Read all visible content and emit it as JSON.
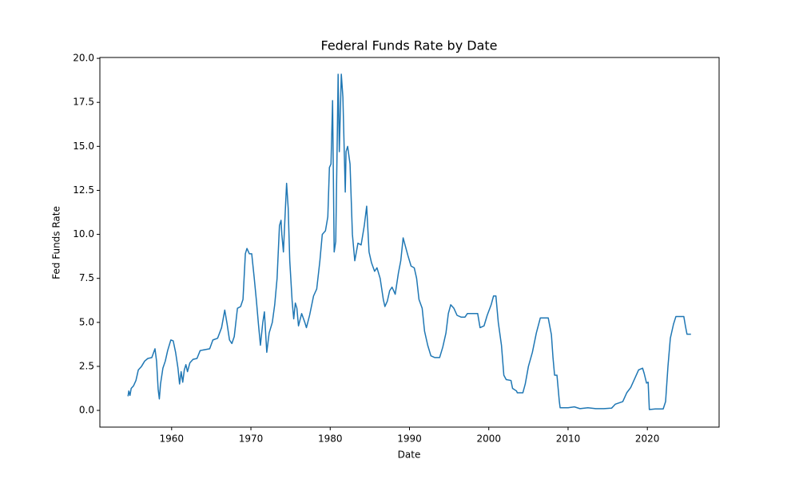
{
  "chart_data": {
    "type": "line",
    "title": "Federal Funds Rate by Date",
    "x_label": "Date",
    "y_label": "Fed Funds Rate",
    "xlim": [
      1950.95,
      2029.05
    ],
    "ylim": [
      -0.95,
      20.05
    ],
    "xticks": [
      1960,
      1970,
      1980,
      1990,
      2000,
      2010,
      2020
    ],
    "yticks": [
      {
        "value": 0,
        "label": "0.0"
      },
      2.5,
      {
        "value": 5,
        "label": "5.0"
      },
      7.5,
      {
        "value": 10,
        "label": "10.0"
      },
      12.5,
      {
        "value": 15,
        "label": "15.0"
      },
      17.5,
      {
        "value": 20,
        "label": "20.0"
      }
    ],
    "grid": false,
    "x": [
      1954.5,
      1954.6,
      1954.75,
      1954.9,
      1955.2,
      1955.5,
      1955.8,
      1956.2,
      1956.6,
      1957.0,
      1957.5,
      1957.9,
      1958.1,
      1958.3,
      1958.45,
      1958.6,
      1958.9,
      1959.2,
      1959.5,
      1959.9,
      1960.2,
      1960.5,
      1960.8,
      1961.0,
      1961.2,
      1961.4,
      1961.6,
      1961.8,
      1962.0,
      1962.3,
      1962.7,
      1963.2,
      1963.6,
      1964.2,
      1964.8,
      1965.2,
      1965.8,
      1966.3,
      1966.7,
      1967.0,
      1967.3,
      1967.6,
      1967.9,
      1968.3,
      1968.7,
      1969.0,
      1969.3,
      1969.5,
      1969.8,
      1970.1,
      1970.4,
      1970.7,
      1970.95,
      1971.2,
      1971.5,
      1971.7,
      1972.0,
      1972.3,
      1972.7,
      1973.0,
      1973.3,
      1973.6,
      1973.8,
      1973.9,
      1974.1,
      1974.3,
      1974.5,
      1974.7,
      1974.9,
      1975.2,
      1975.4,
      1975.6,
      1975.8,
      1976.0,
      1976.4,
      1976.8,
      1977.0,
      1977.4,
      1977.9,
      1978.3,
      1978.7,
      1979.0,
      1979.4,
      1979.7,
      1979.9,
      1980.1,
      1980.3,
      1980.5,
      1980.7,
      1980.9,
      1981.0,
      1981.15,
      1981.4,
      1981.6,
      1981.9,
      1982.0,
      1982.2,
      1982.5,
      1982.8,
      1983.1,
      1983.5,
      1983.9,
      1984.3,
      1984.6,
      1984.9,
      1985.2,
      1985.6,
      1985.9,
      1986.3,
      1986.7,
      1986.9,
      1987.2,
      1987.5,
      1987.8,
      1988.2,
      1988.6,
      1988.9,
      1989.2,
      1989.5,
      1989.8,
      1990.2,
      1990.6,
      1990.9,
      1991.2,
      1991.6,
      1991.9,
      1992.3,
      1992.7,
      1993.2,
      1993.8,
      1994.2,
      1994.6,
      1994.9,
      1995.2,
      1995.6,
      1996.0,
      1996.5,
      1997.0,
      1997.3,
      1998.0,
      1998.6,
      1998.9,
      1999.4,
      1999.8,
      2000.3,
      2000.6,
      2000.9,
      2001.2,
      2001.6,
      2001.9,
      2002.2,
      2002.8,
      2003.0,
      2003.5,
      2003.6,
      2004.3,
      2004.6,
      2005.0,
      2005.5,
      2006.0,
      2006.5,
      2007.5,
      2007.9,
      2008.1,
      2008.3,
      2008.6,
      2008.9,
      2009.0,
      2010.0,
      2010.8,
      2011.5,
      2012.5,
      2013.5,
      2014.5,
      2015.5,
      2015.95,
      2016.9,
      2017.4,
      2017.9,
      2018.5,
      2018.9,
      2019.4,
      2019.6,
      2019.9,
      2020.1,
      2020.25,
      2021.0,
      2022.0,
      2022.3,
      2022.6,
      2022.9,
      2023.3,
      2023.6,
      2024.6,
      2024.8,
      2025.0,
      2025.5
    ],
    "series": [
      {
        "name": "Fed Funds Rate",
        "color": "#1f77b4",
        "values": [
          0.8,
          1.1,
          0.85,
          1.25,
          1.4,
          1.7,
          2.3,
          2.5,
          2.8,
          2.95,
          3.0,
          3.5,
          2.8,
          1.2,
          0.65,
          1.5,
          2.4,
          2.8,
          3.4,
          4.0,
          3.95,
          3.3,
          2.4,
          1.5,
          2.2,
          1.6,
          2.3,
          2.6,
          2.2,
          2.7,
          2.9,
          2.95,
          3.4,
          3.45,
          3.5,
          4.0,
          4.1,
          4.7,
          5.7,
          4.9,
          4.0,
          3.8,
          4.2,
          5.8,
          5.9,
          6.3,
          8.9,
          9.2,
          8.9,
          8.9,
          7.6,
          6.2,
          4.9,
          3.7,
          5.0,
          5.6,
          3.3,
          4.4,
          5.0,
          6.0,
          7.5,
          10.5,
          10.8,
          10.0,
          9.0,
          11.0,
          12.9,
          11.5,
          8.5,
          6.2,
          5.2,
          6.1,
          5.8,
          4.8,
          5.5,
          5.0,
          4.7,
          5.4,
          6.5,
          6.9,
          8.5,
          10.0,
          10.2,
          11.0,
          13.8,
          14.0,
          17.6,
          9.0,
          9.6,
          15.8,
          19.1,
          14.7,
          19.1,
          17.8,
          12.4,
          14.7,
          15.0,
          14.0,
          10.0,
          8.5,
          9.5,
          9.4,
          10.5,
          11.6,
          9.0,
          8.4,
          7.9,
          8.1,
          7.5,
          6.3,
          5.9,
          6.2,
          6.8,
          7.0,
          6.6,
          7.8,
          8.5,
          9.8,
          9.3,
          8.8,
          8.2,
          8.1,
          7.5,
          6.3,
          5.8,
          4.5,
          3.7,
          3.1,
          3.0,
          3.0,
          3.6,
          4.4,
          5.5,
          6.0,
          5.8,
          5.4,
          5.3,
          5.3,
          5.5,
          5.5,
          5.5,
          4.7,
          4.8,
          5.4,
          6.0,
          6.5,
          6.5,
          5.0,
          3.7,
          2.0,
          1.75,
          1.7,
          1.25,
          1.1,
          1.0,
          1.0,
          1.5,
          2.5,
          3.3,
          4.4,
          5.25,
          5.25,
          4.3,
          3.0,
          2.0,
          2.0,
          0.5,
          0.15,
          0.15,
          0.2,
          0.1,
          0.15,
          0.1,
          0.1,
          0.13,
          0.35,
          0.5,
          1.0,
          1.3,
          1.9,
          2.3,
          2.4,
          2.1,
          1.55,
          1.6,
          0.05,
          0.08,
          0.08,
          0.5,
          2.5,
          4.1,
          4.9,
          5.33,
          5.33,
          4.8,
          4.33,
          4.33
        ]
      }
    ]
  }
}
